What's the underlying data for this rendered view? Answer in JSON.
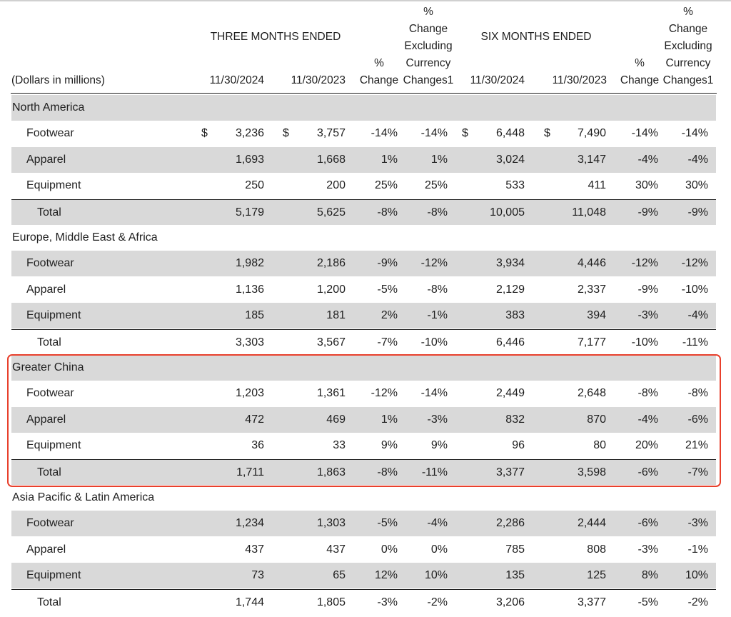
{
  "header": {
    "dollars_label": "(Dollars in millions)",
    "three_months_label": "THREE MONTHS ENDED",
    "six_months_label": "SIX MONTHS ENDED",
    "date_current": "11/30/2024",
    "date_prior": "11/30/2023",
    "pct_change_line1": "%",
    "pct_change_line2": "Change",
    "excl_line1": "%",
    "excl_line2": "Change",
    "excl_line3": "Excluding",
    "excl_line4": "Currency",
    "excl_line5": "Changes1"
  },
  "currency_symbol": "$",
  "rows": [
    {
      "kind": "region",
      "label": "North America"
    },
    {
      "kind": "item",
      "label": "Footwear",
      "dollar": true,
      "q_cur": "3,236",
      "q_prior": "3,757",
      "q_chg": "-14%",
      "q_exfx": "-14%",
      "s_cur": "6,448",
      "s_prior": "7,490",
      "s_chg": "-14%",
      "s_exfx": "-14%"
    },
    {
      "kind": "item",
      "label": "Apparel",
      "q_cur": "1,693",
      "q_prior": "1,668",
      "q_chg": "1%",
      "q_exfx": "1%",
      "s_cur": "3,024",
      "s_prior": "3,147",
      "s_chg": "-4%",
      "s_exfx": "-4%"
    },
    {
      "kind": "item",
      "label": "Equipment",
      "q_cur": "250",
      "q_prior": "200",
      "q_chg": "25%",
      "q_exfx": "25%",
      "s_cur": "533",
      "s_prior": "411",
      "s_chg": "30%",
      "s_exfx": "30%"
    },
    {
      "kind": "total",
      "label": "Total",
      "q_cur": "5,179",
      "q_prior": "5,625",
      "q_chg": "-8%",
      "q_exfx": "-8%",
      "s_cur": "10,005",
      "s_prior": "11,048",
      "s_chg": "-9%",
      "s_exfx": "-9%"
    },
    {
      "kind": "region",
      "label": "Europe, Middle East & Africa"
    },
    {
      "kind": "item",
      "label": "Footwear",
      "q_cur": "1,982",
      "q_prior": "2,186",
      "q_chg": "-9%",
      "q_exfx": "-12%",
      "s_cur": "3,934",
      "s_prior": "4,446",
      "s_chg": "-12%",
      "s_exfx": "-12%"
    },
    {
      "kind": "item",
      "label": "Apparel",
      "q_cur": "1,136",
      "q_prior": "1,200",
      "q_chg": "-5%",
      "q_exfx": "-8%",
      "s_cur": "2,129",
      "s_prior": "2,337",
      "s_chg": "-9%",
      "s_exfx": "-10%"
    },
    {
      "kind": "item",
      "label": "Equipment",
      "q_cur": "185",
      "q_prior": "181",
      "q_chg": "2%",
      "q_exfx": "-1%",
      "s_cur": "383",
      "s_prior": "394",
      "s_chg": "-3%",
      "s_exfx": "-4%"
    },
    {
      "kind": "total",
      "label": "Total",
      "q_cur": "3,303",
      "q_prior": "3,567",
      "q_chg": "-7%",
      "q_exfx": "-10%",
      "s_cur": "6,446",
      "s_prior": "7,177",
      "s_chg": "-10%",
      "s_exfx": "-11%"
    },
    {
      "kind": "region",
      "label": "Greater China"
    },
    {
      "kind": "item",
      "label": "Footwear",
      "q_cur": "1,203",
      "q_prior": "1,361",
      "q_chg": "-12%",
      "q_exfx": "-14%",
      "s_cur": "2,449",
      "s_prior": "2,648",
      "s_chg": "-8%",
      "s_exfx": "-8%"
    },
    {
      "kind": "item",
      "label": "Apparel",
      "q_cur": "472",
      "q_prior": "469",
      "q_chg": "1%",
      "q_exfx": "-3%",
      "s_cur": "832",
      "s_prior": "870",
      "s_chg": "-4%",
      "s_exfx": "-6%"
    },
    {
      "kind": "item",
      "label": "Equipment",
      "q_cur": "36",
      "q_prior": "33",
      "q_chg": "9%",
      "q_exfx": "9%",
      "s_cur": "96",
      "s_prior": "80",
      "s_chg": "20%",
      "s_exfx": "21%"
    },
    {
      "kind": "total",
      "label": "Total",
      "q_cur": "1,711",
      "q_prior": "1,863",
      "q_chg": "-8%",
      "q_exfx": "-11%",
      "s_cur": "3,377",
      "s_prior": "3,598",
      "s_chg": "-6%",
      "s_exfx": "-7%"
    },
    {
      "kind": "region",
      "label": "Asia Pacific & Latin America"
    },
    {
      "kind": "item",
      "label": "Footwear",
      "q_cur": "1,234",
      "q_prior": "1,303",
      "q_chg": "-5%",
      "q_exfx": "-4%",
      "s_cur": "2,286",
      "s_prior": "2,444",
      "s_chg": "-6%",
      "s_exfx": "-3%"
    },
    {
      "kind": "item",
      "label": "Apparel",
      "q_cur": "437",
      "q_prior": "437",
      "q_chg": "0%",
      "q_exfx": "0%",
      "s_cur": "785",
      "s_prior": "808",
      "s_chg": "-3%",
      "s_exfx": "-1%"
    },
    {
      "kind": "item",
      "label": "Equipment",
      "q_cur": "73",
      "q_prior": "65",
      "q_chg": "12%",
      "q_exfx": "10%",
      "s_cur": "135",
      "s_prior": "125",
      "s_chg": "8%",
      "s_exfx": "10%"
    },
    {
      "kind": "total",
      "label": "Total",
      "q_cur": "1,744",
      "q_prior": "1,805",
      "q_chg": "-3%",
      "q_exfx": "-2%",
      "s_cur": "3,206",
      "s_prior": "3,377",
      "s_chg": "-5%",
      "s_exfx": "-2%"
    }
  ],
  "highlight": {
    "region": "Greater China",
    "color": "#e8402c"
  }
}
